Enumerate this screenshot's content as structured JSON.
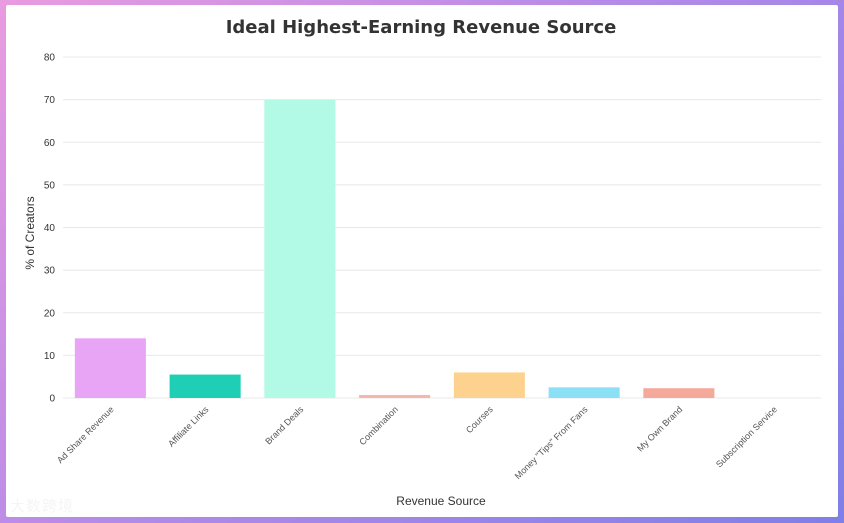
{
  "chart_data": {
    "type": "bar",
    "title": "Ideal Highest-Earning Revenue Source",
    "xlabel": "Revenue Source",
    "ylabel": "% of Creators",
    "ylim": [
      0,
      80
    ],
    "yticks": [
      0,
      10,
      20,
      30,
      40,
      50,
      60,
      70,
      80
    ],
    "grid": true,
    "categories": [
      "Ad Share Revenue",
      "Affiliate Links",
      "Brand Deals",
      "Combination",
      "Courses",
      "Money \"Tips\" From Fans",
      "My Own Brand",
      "Subscription Service"
    ],
    "values": [
      14,
      5.5,
      70,
      0.7,
      6,
      2.5,
      2.3,
      0
    ],
    "colors": [
      "#e8a5f5",
      "#1fcfb5",
      "#b2fae6",
      "#f5b7ad",
      "#fdd28f",
      "#8be0f5",
      "#f5a99b",
      "#d9d9d9"
    ]
  },
  "watermark": "大数跨境"
}
